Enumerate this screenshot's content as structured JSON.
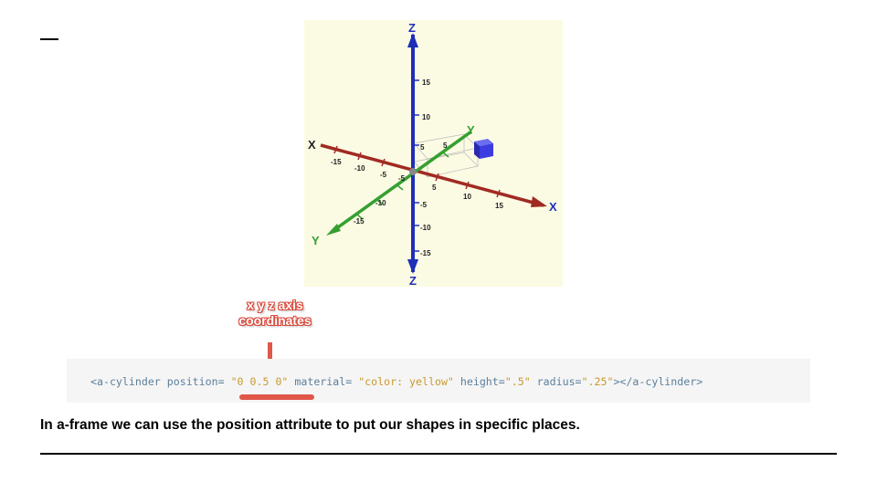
{
  "diagram": {
    "axis_labels": {
      "x_neg": "X",
      "x_pos": "X",
      "y_pos": "Y",
      "y_neg": "Y",
      "z_pos": "Z",
      "z_neg": "Z"
    },
    "z_ticks": [
      "15",
      "10",
      "5",
      "-5",
      "-10",
      "-15"
    ],
    "x_ticks_neg": [
      "-15",
      "-10",
      "-5"
    ],
    "x_ticks_pos": [
      "5",
      "10",
      "15"
    ],
    "y_ticks_pos": [
      "5"
    ],
    "y_ticks_neg": [
      "-5",
      "-10",
      "-15"
    ],
    "colors": {
      "x_axis": "#a12a22",
      "y_axis": "#35a030",
      "z_axis": "#1f2fb8",
      "cube": "#3d3ce0"
    }
  },
  "callout": {
    "line1": "x y z axis",
    "line2": "coordinates",
    "color": "#e0574a"
  },
  "code": {
    "open_tag": "<a-cylinder",
    "attr_position": "position=",
    "val_position": "\"0 0.5 0\"",
    "attr_material": "material=",
    "val_material": "\"color: yellow\"",
    "attr_height": "height=",
    "val_height": "\".5\"",
    "attr_radius": "radius=",
    "val_radius": "\".25\"",
    "close_tag": "></a-cylinder>"
  },
  "caption": "In a-frame we can use the position attribute to put our shapes in specific places."
}
